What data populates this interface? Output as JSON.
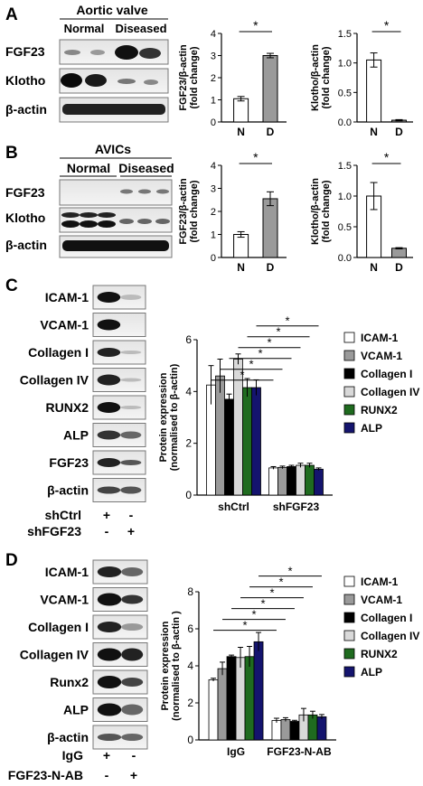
{
  "panels": {
    "A": {
      "letter": "A",
      "blot": {
        "group_header": "Aortic valve",
        "col_labels": [
          "Normal",
          "Diseased"
        ],
        "rows": [
          "FGF23",
          "Klotho",
          "β-actin"
        ]
      }
    },
    "B": {
      "letter": "B",
      "blot": {
        "group_header": "AVICs",
        "col_labels": [
          "Normal",
          "Diseased"
        ],
        "rows": [
          "FGF23",
          "Klotho",
          "β-actin"
        ]
      }
    },
    "C": {
      "letter": "C",
      "blot": {
        "rows": [
          "ICAM-1",
          "VCAM-1",
          "Collagen I",
          "Collagen IV",
          "RUNX2",
          "ALP",
          "FGF23",
          "β-actin"
        ],
        "treatments": [
          {
            "label": "shCtrl",
            "signs": [
              "+",
              "-"
            ]
          },
          {
            "label": "shFGF23",
            "signs": [
              "-",
              "+"
            ]
          }
        ]
      }
    },
    "D": {
      "letter": "D",
      "blot": {
        "rows": [
          "ICAM-1",
          "VCAM-1",
          "Collagen I",
          "Collagen IV",
          "Runx2",
          "ALP",
          "β-actin"
        ],
        "treatments": [
          {
            "label": "IgG",
            "signs": [
              "+",
              "-"
            ]
          },
          {
            "label": "FGF23-N-AB",
            "signs": [
              "-",
              "+"
            ]
          }
        ]
      }
    }
  },
  "chart_data": [
    {
      "id": "A-fgf23",
      "type": "bar",
      "categories": [
        "N",
        "D"
      ],
      "values": [
        1.05,
        3.0
      ],
      "errors": [
        0.1,
        0.1
      ],
      "ylabel": "FGF23/β-actin (fold change)",
      "ylim": [
        0,
        4
      ],
      "yticks": [
        0,
        1,
        2,
        3,
        4
      ],
      "sig": [
        "*"
      ],
      "bar_colors": [
        "#ffffff",
        "#9a9a9a"
      ]
    },
    {
      "id": "A-klotho",
      "type": "bar",
      "categories": [
        "N",
        "D"
      ],
      "values": [
        1.05,
        0.03
      ],
      "errors": [
        0.12,
        0.01
      ],
      "ylabel": "Klotho/β-actin (fold change)",
      "ylim": [
        0,
        1.5
      ],
      "yticks": [
        "0.0",
        "0.5",
        "1.0",
        "1.5"
      ],
      "sig": [
        "*"
      ],
      "bar_colors": [
        "#ffffff",
        "#9a9a9a"
      ]
    },
    {
      "id": "B-fgf23",
      "type": "bar",
      "categories": [
        "N",
        "D"
      ],
      "values": [
        1.0,
        2.55
      ],
      "errors": [
        0.12,
        0.3
      ],
      "ylabel": "FGF23/β-actin (fold change)",
      "ylim": [
        0,
        4
      ],
      "yticks": [
        0,
        1,
        2,
        3,
        4
      ],
      "sig": [
        "*"
      ],
      "bar_colors": [
        "#ffffff",
        "#9a9a9a"
      ]
    },
    {
      "id": "B-klotho",
      "type": "bar",
      "categories": [
        "N",
        "D"
      ],
      "values": [
        1.0,
        0.15
      ],
      "errors": [
        0.22,
        0.01
      ],
      "ylabel": "Klotho/β-actin (fold change)",
      "ylim": [
        0,
        1.5
      ],
      "yticks": [
        "0.0",
        "0.5",
        "1.0",
        "1.5"
      ],
      "sig": [
        "*"
      ],
      "bar_colors": [
        "#ffffff",
        "#9a9a9a"
      ]
    },
    {
      "id": "C-expr",
      "type": "bar",
      "categories": [
        "shCtrl",
        "shFGF23"
      ],
      "series": [
        {
          "name": "ICAM-1",
          "color": "#ffffff",
          "values": [
            4.25,
            1.05
          ],
          "errors": [
            0.75,
            0.05
          ]
        },
        {
          "name": "VCAM-1",
          "color": "#9a9a9a",
          "values": [
            4.6,
            1.07
          ],
          "errors": [
            0.65,
            0.05
          ]
        },
        {
          "name": "Collagen I",
          "color": "#000000",
          "values": [
            3.7,
            1.1
          ],
          "errors": [
            0.2,
            0.05
          ]
        },
        {
          "name": "Collagen IV",
          "color": "#d9d9d9",
          "values": [
            5.25,
            1.15
          ],
          "errors": [
            0.2,
            0.08
          ]
        },
        {
          "name": "RUNX2",
          "color": "#1f6b1f",
          "values": [
            4.15,
            1.15
          ],
          "errors": [
            0.35,
            0.08
          ]
        },
        {
          "name": "ALP",
          "color": "#14146e",
          "values": [
            4.15,
            1.0
          ],
          "errors": [
            0.3,
            0.05
          ]
        }
      ],
      "ylabel": "Protein expression (normalised to β-actin)",
      "ylim": [
        0,
        6
      ],
      "yticks": [
        0,
        2,
        4,
        6
      ],
      "sig": [
        "*",
        "*",
        "*",
        "*",
        "*",
        "*"
      ]
    },
    {
      "id": "D-expr",
      "type": "bar",
      "categories": [
        "IgG",
        "FGF23-N-AB"
      ],
      "series": [
        {
          "name": "ICAM-1",
          "color": "#ffffff",
          "values": [
            3.25,
            1.05
          ],
          "errors": [
            0.08,
            0.12
          ]
        },
        {
          "name": "VCAM-1",
          "color": "#9a9a9a",
          "values": [
            3.85,
            1.1
          ],
          "errors": [
            0.35,
            0.1
          ]
        },
        {
          "name": "Collagen I",
          "color": "#000000",
          "values": [
            4.5,
            1.0
          ],
          "errors": [
            0.08,
            0.06
          ]
        },
        {
          "name": "Collagen IV",
          "color": "#d9d9d9",
          "values": [
            4.45,
            1.35
          ],
          "errors": [
            0.55,
            0.35
          ]
        },
        {
          "name": "RUNX2",
          "color": "#1f6b1f",
          "values": [
            4.5,
            1.35
          ],
          "errors": [
            0.55,
            0.2
          ]
        },
        {
          "name": "ALP",
          "color": "#14146e",
          "values": [
            5.3,
            1.25
          ],
          "errors": [
            0.5,
            0.12
          ]
        }
      ],
      "ylabel": "Protein expression (normalised to β-actin )",
      "ylim": [
        0,
        8
      ],
      "yticks": [
        0,
        2,
        4,
        6,
        8
      ],
      "sig": [
        "*",
        "*",
        "*",
        "*",
        "*",
        "*"
      ]
    }
  ]
}
